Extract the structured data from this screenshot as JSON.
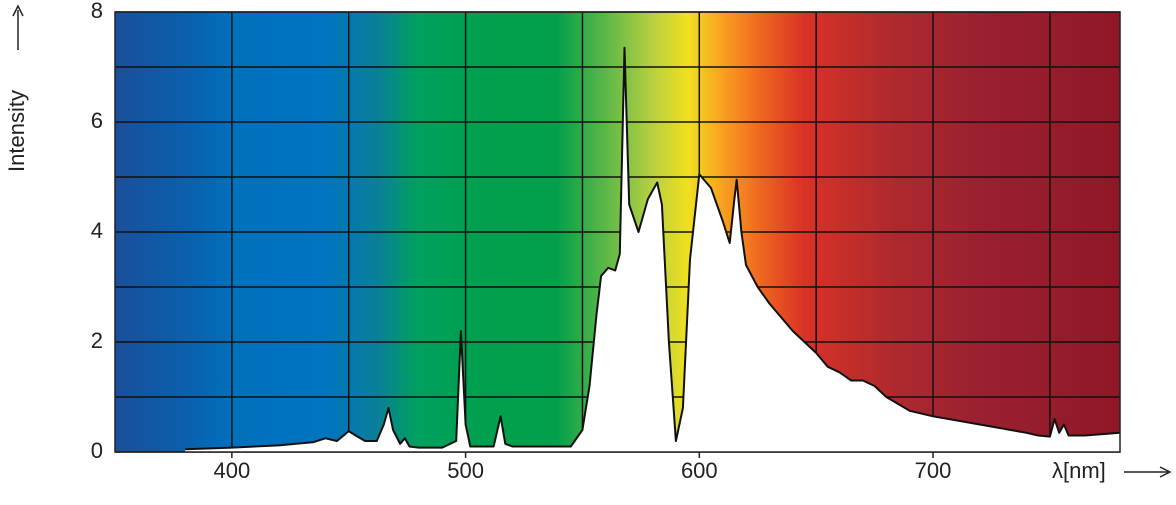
{
  "chart_data": {
    "type": "area",
    "y_label": "Intensity",
    "x_label": "λ[nm]",
    "xlim": [
      350,
      780
    ],
    "ylim": [
      0,
      8
    ],
    "xticks": [
      400,
      500,
      600,
      700
    ],
    "xminorticks": [
      450,
      550,
      650,
      750
    ],
    "yticks": [
      0,
      2,
      4,
      6,
      8
    ],
    "yminorticks": [
      1,
      3,
      5,
      7
    ],
    "grid": true,
    "series": [
      {
        "color": "#ffffff",
        "x": [
          380,
          400,
          420,
          435,
          440,
          445,
          450,
          453,
          457,
          462,
          465,
          467,
          469,
          472,
          474,
          476,
          480,
          490,
          496,
          498,
          500,
          502,
          512,
          515,
          517,
          520,
          545,
          550,
          553,
          556,
          558,
          561,
          564,
          566,
          568,
          570,
          574,
          578,
          582,
          584,
          587,
          590,
          593,
          596,
          600,
          605,
          610,
          613,
          615,
          616,
          618,
          620,
          625,
          630,
          640,
          650,
          655,
          660,
          665,
          670,
          675,
          680,
          690,
          700,
          720,
          740,
          745,
          750,
          752,
          754,
          756,
          758,
          765,
          780
        ],
        "values": [
          0.05,
          0.08,
          0.12,
          0.18,
          0.25,
          0.2,
          0.38,
          0.3,
          0.2,
          0.2,
          0.5,
          0.8,
          0.4,
          0.15,
          0.25,
          0.1,
          0.08,
          0.08,
          0.2,
          2.2,
          0.5,
          0.1,
          0.1,
          0.65,
          0.15,
          0.1,
          0.1,
          0.4,
          1.2,
          2.5,
          3.2,
          3.35,
          3.3,
          3.6,
          7.35,
          4.5,
          4.0,
          4.6,
          4.9,
          4.5,
          2.0,
          0.2,
          0.8,
          3.5,
          5.05,
          4.8,
          4.2,
          3.8,
          4.6,
          4.95,
          4.0,
          3.4,
          3.0,
          2.7,
          2.2,
          1.8,
          1.55,
          1.45,
          1.3,
          1.3,
          1.2,
          1.0,
          0.75,
          0.65,
          0.5,
          0.35,
          0.3,
          0.28,
          0.6,
          0.35,
          0.5,
          0.3,
          0.3,
          0.35
        ]
      }
    ]
  }
}
